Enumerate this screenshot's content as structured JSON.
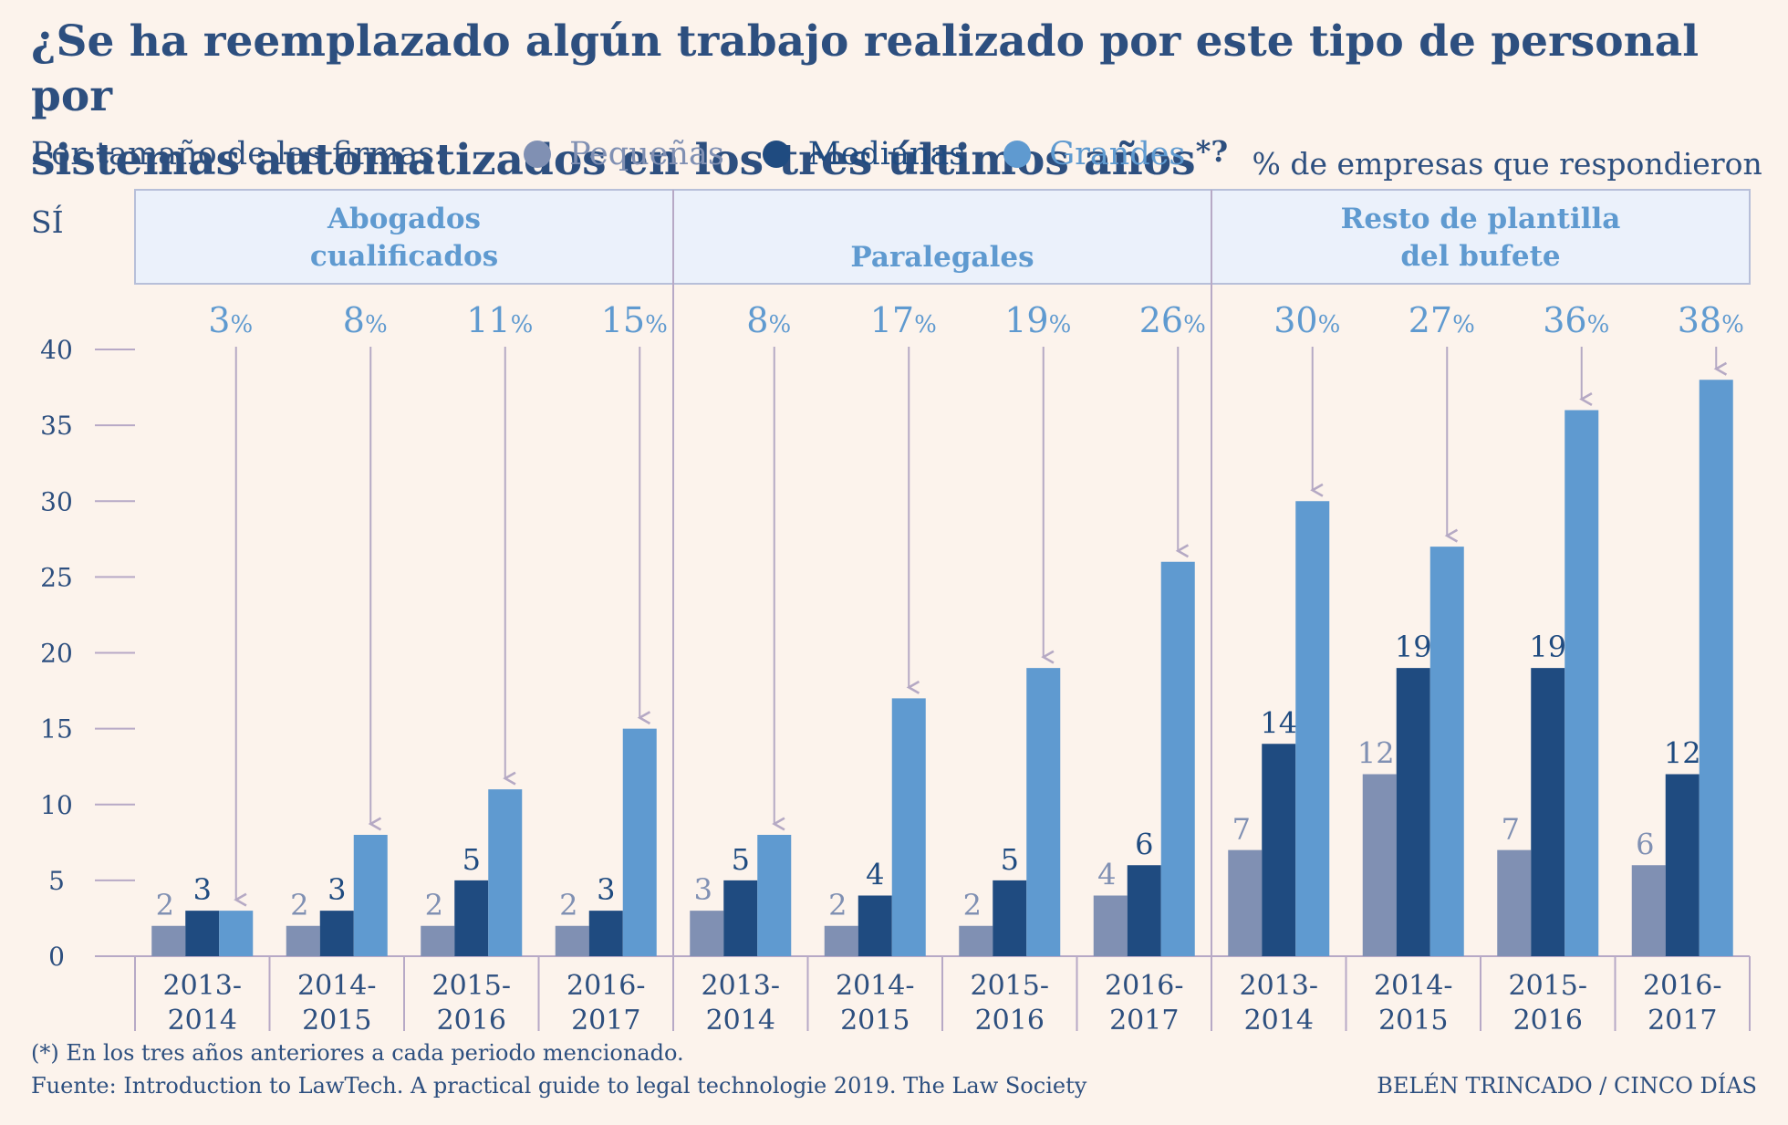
{
  "title_line1": "¿Se ha reemplazado algún trabajo realizado por este tipo de personal por",
  "title_line2": "sistemas automatizados en los tres últimos años",
  "title_star": "*?",
  "subtitle": "% de empresas que respondieron SÍ",
  "legend_label": "Por tamaño de las firmas:",
  "colors": {
    "small": "#8090b3",
    "medium": "#1f4b80",
    "large": "#5f9ad0",
    "text": "#2d4f7f",
    "panel_bg": "#ebf1fb",
    "panel_border": "#b7bfd9"
  },
  "footnote": "(*) En los tres años anteriores a cada periodo mencionado.",
  "source": "Fuente: Introduction to LawTech. A practical guide to legal technologie 2019. The Law Society",
  "credit": "BELÉN TRINCADO / CINCO DÍAS",
  "chart_data": {
    "type": "bar",
    "ylim": [
      0,
      40
    ],
    "yticks": [
      0,
      5,
      10,
      15,
      20,
      25,
      30,
      35,
      40
    ],
    "series_names": [
      "Pequeñas",
      "Medianas",
      "Grandes"
    ],
    "percent_suffix": "%",
    "groups": [
      {
        "name": "Abogados cualificados",
        "name_lines": [
          "Abogados",
          "cualificados"
        ],
        "periods": [
          "2013-\n2014",
          "2014-\n2015",
          "2015-\n2016",
          "2016-\n2017"
        ],
        "pequenas": [
          2,
          2,
          2,
          2
        ],
        "medianas": [
          3,
          3,
          5,
          3
        ],
        "grandes": [
          3,
          8,
          11,
          15
        ]
      },
      {
        "name": "Paralegales",
        "name_lines": [
          "Paralegales"
        ],
        "periods": [
          "2013-\n2014",
          "2014-\n2015",
          "2015-\n2016",
          "2016-\n2017"
        ],
        "pequenas": [
          3,
          2,
          2,
          4
        ],
        "medianas": [
          5,
          4,
          5,
          6
        ],
        "grandes": [
          8,
          17,
          19,
          26
        ]
      },
      {
        "name": "Resto de plantilla del bufete",
        "name_lines": [
          "Resto de plantilla",
          "del bufete"
        ],
        "periods": [
          "2013-\n2014",
          "2014-\n2015",
          "2015-\n2016",
          "2016-\n2017"
        ],
        "pequenas": [
          7,
          12,
          7,
          6
        ],
        "medianas": [
          14,
          19,
          19,
          12
        ],
        "grandes": [
          30,
          27,
          36,
          38
        ]
      }
    ]
  }
}
